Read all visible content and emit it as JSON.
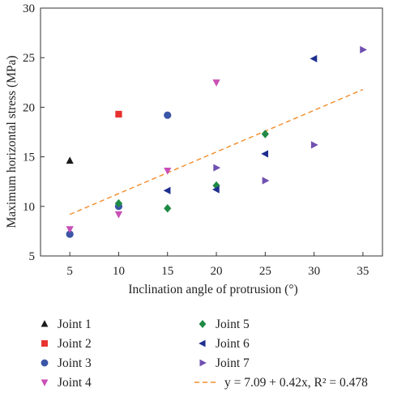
{
  "chart_data": {
    "type": "scatter",
    "xlabel": "Inclination angle of protrusion (°)",
    "ylabel": "Maximum horizontal stress (MPa)",
    "xlim": [
      2,
      37
    ],
    "ylim": [
      5,
      30
    ],
    "x_ticks": [
      5,
      10,
      15,
      20,
      25,
      30,
      35
    ],
    "y_ticks": [
      5,
      10,
      15,
      20,
      25,
      30
    ],
    "grid": false,
    "legend_position": "below",
    "series": [
      {
        "name": "Joint 1",
        "marker": "triangle-up",
        "color": "#1a1a1a",
        "points": [
          [
            5,
            14.6
          ]
        ]
      },
      {
        "name": "Joint 2",
        "marker": "square",
        "color": "#e8322f",
        "points": [
          [
            10,
            19.3
          ]
        ]
      },
      {
        "name": "Joint 3",
        "marker": "circle",
        "color": "#3b56a6",
        "points": [
          [
            5,
            7.2
          ],
          [
            10,
            10.0
          ],
          [
            15,
            19.2
          ]
        ]
      },
      {
        "name": "Joint 4",
        "marker": "triangle-down",
        "color": "#c94fb6",
        "points": [
          [
            5,
            7.7
          ],
          [
            10,
            9.2
          ],
          [
            15,
            13.6
          ],
          [
            20,
            22.5
          ]
        ]
      },
      {
        "name": "Joint 5",
        "marker": "diamond",
        "color": "#1f8a45",
        "points": [
          [
            10,
            10.3
          ],
          [
            15,
            9.8
          ],
          [
            20,
            12.1
          ],
          [
            25,
            17.3
          ]
        ]
      },
      {
        "name": "Joint 6",
        "marker": "triangle-left",
        "color": "#1e2f8f",
        "points": [
          [
            15,
            11.6
          ],
          [
            20,
            11.7
          ],
          [
            25,
            15.3
          ],
          [
            30,
            24.9
          ]
        ]
      },
      {
        "name": "Joint 7",
        "marker": "triangle-right",
        "color": "#6f4fb0",
        "points": [
          [
            20,
            13.9
          ],
          [
            25,
            12.6
          ],
          [
            30,
            16.2
          ],
          [
            35,
            25.8
          ]
        ]
      }
    ],
    "fit": {
      "label": "y = 7.09 + 0.42x, R² = 0.478",
      "intercept": 7.09,
      "slope": 0.42,
      "x_range": [
        5,
        35
      ],
      "color": "#f28c28",
      "style": "dashed"
    }
  }
}
